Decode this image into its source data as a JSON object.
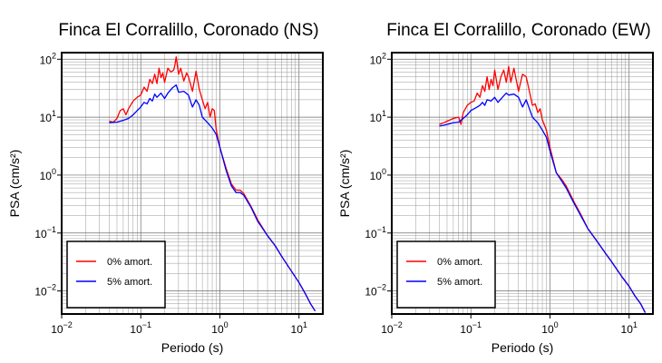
{
  "chart_data": [
    {
      "type": "line",
      "title": "Finca El Corralillo, Coronado (NS)",
      "xlabel": "Periodo (s)",
      "ylabel": "PSA (cm/s²)",
      "xscale": "log",
      "yscale": "log",
      "xlim": [
        0.01,
        20
      ],
      "ylim": [
        0.004,
        130
      ],
      "xticks": [
        0.01,
        0.1,
        1,
        10
      ],
      "xtick_labels": [
        {
          "base": "10",
          "exp": "−2"
        },
        {
          "base": "10",
          "exp": "−1"
        },
        {
          "base": "10",
          "exp": "0"
        },
        {
          "base": "10",
          "exp": "1"
        }
      ],
      "yticks": [
        0.01,
        0.1,
        1,
        10,
        100
      ],
      "ytick_labels": [
        {
          "base": "10",
          "exp": "−2"
        },
        {
          "base": "10",
          "exp": "−1"
        },
        {
          "base": "10",
          "exp": "0"
        },
        {
          "base": "10",
          "exp": "1"
        },
        {
          "base": "10",
          "exp": "2"
        }
      ],
      "grid": true,
      "legend_position": "bottom-left",
      "series": [
        {
          "name": "0% amort.",
          "color": "#ff0000",
          "points": [
            [
              0.04,
              8.5
            ],
            [
              0.045,
              8.2
            ],
            [
              0.05,
              9.5
            ],
            [
              0.055,
              13
            ],
            [
              0.06,
              14
            ],
            [
              0.065,
              11
            ],
            [
              0.07,
              14
            ],
            [
              0.08,
              19
            ],
            [
              0.09,
              22
            ],
            [
              0.1,
              24
            ],
            [
              0.11,
              33
            ],
            [
              0.12,
              28
            ],
            [
              0.13,
              45
            ],
            [
              0.14,
              38
            ],
            [
              0.15,
              55
            ],
            [
              0.16,
              38
            ],
            [
              0.17,
              70
            ],
            [
              0.18,
              48
            ],
            [
              0.19,
              58
            ],
            [
              0.2,
              40
            ],
            [
              0.22,
              70
            ],
            [
              0.24,
              60
            ],
            [
              0.26,
              65
            ],
            [
              0.27,
              80
            ],
            [
              0.28,
              110
            ],
            [
              0.3,
              55
            ],
            [
              0.32,
              70
            ],
            [
              0.35,
              42
            ],
            [
              0.38,
              58
            ],
            [
              0.4,
              50
            ],
            [
              0.45,
              28
            ],
            [
              0.5,
              62
            ],
            [
              0.55,
              30
            ],
            [
              0.6,
              20
            ],
            [
              0.65,
              14
            ],
            [
              0.7,
              18
            ],
            [
              0.75,
              10
            ],
            [
              0.8,
              14
            ],
            [
              0.85,
              13
            ],
            [
              0.9,
              6
            ],
            [
              1,
              3
            ],
            [
              1.2,
              1.3
            ],
            [
              1.4,
              0.7
            ],
            [
              1.6,
              0.55
            ],
            [
              1.8,
              0.55
            ],
            [
              2,
              0.48
            ],
            [
              2.5,
              0.28
            ],
            [
              3,
              0.17
            ],
            [
              4,
              0.09
            ],
            [
              5,
              0.06
            ],
            [
              6,
              0.04
            ],
            [
              8,
              0.022
            ],
            [
              10,
              0.014
            ],
            [
              12,
              0.009
            ],
            [
              14,
              0.006
            ],
            [
              16,
              0.0045
            ]
          ]
        },
        {
          "name": "5% amort.",
          "color": "#0000ff",
          "points": [
            [
              0.04,
              8
            ],
            [
              0.05,
              8.2
            ],
            [
              0.06,
              8.8
            ],
            [
              0.07,
              9.5
            ],
            [
              0.08,
              11
            ],
            [
              0.09,
              13
            ],
            [
              0.1,
              15
            ],
            [
              0.11,
              18
            ],
            [
              0.12,
              17
            ],
            [
              0.13,
              21
            ],
            [
              0.14,
              19
            ],
            [
              0.15,
              25
            ],
            [
              0.16,
              22
            ],
            [
              0.18,
              26
            ],
            [
              0.2,
              21
            ],
            [
              0.22,
              26
            ],
            [
              0.25,
              32
            ],
            [
              0.28,
              36
            ],
            [
              0.3,
              27
            ],
            [
              0.35,
              28
            ],
            [
              0.4,
              24
            ],
            [
              0.45,
              15
            ],
            [
              0.5,
              20
            ],
            [
              0.55,
              16
            ],
            [
              0.6,
              10
            ],
            [
              0.7,
              8
            ],
            [
              0.8,
              6.5
            ],
            [
              0.9,
              5
            ],
            [
              1,
              3
            ],
            [
              1.2,
              1.2
            ],
            [
              1.4,
              0.65
            ],
            [
              1.6,
              0.5
            ],
            [
              1.8,
              0.5
            ],
            [
              2,
              0.45
            ],
            [
              2.5,
              0.27
            ],
            [
              3,
              0.16
            ],
            [
              4,
              0.09
            ],
            [
              5,
              0.06
            ],
            [
              6,
              0.04
            ],
            [
              8,
              0.022
            ],
            [
              10,
              0.014
            ],
            [
              12,
              0.009
            ],
            [
              14,
              0.006
            ],
            [
              16,
              0.0045
            ]
          ]
        }
      ]
    },
    {
      "type": "line",
      "title": "Finca El Corralillo, Coronado (EW)",
      "xlabel": "Periodo (s)",
      "ylabel": "PSA (cm/s²)",
      "xscale": "log",
      "yscale": "log",
      "xlim": [
        0.01,
        20
      ],
      "ylim": [
        0.004,
        130
      ],
      "xticks": [
        0.01,
        0.1,
        1,
        10
      ],
      "xtick_labels": [
        {
          "base": "10",
          "exp": "−2"
        },
        {
          "base": "10",
          "exp": "−1"
        },
        {
          "base": "10",
          "exp": "0"
        },
        {
          "base": "10",
          "exp": "1"
        }
      ],
      "yticks": [
        0.01,
        0.1,
        1,
        10,
        100
      ],
      "ytick_labels": [
        {
          "base": "10",
          "exp": "−2"
        },
        {
          "base": "10",
          "exp": "−1"
        },
        {
          "base": "10",
          "exp": "0"
        },
        {
          "base": "10",
          "exp": "1"
        },
        {
          "base": "10",
          "exp": "2"
        }
      ],
      "grid": true,
      "legend_position": "bottom-left",
      "series": [
        {
          "name": "0% amort.",
          "color": "#ff0000",
          "points": [
            [
              0.04,
              7.5
            ],
            [
              0.045,
              8
            ],
            [
              0.05,
              8.5
            ],
            [
              0.06,
              9.5
            ],
            [
              0.07,
              10
            ],
            [
              0.075,
              7.5
            ],
            [
              0.08,
              12
            ],
            [
              0.09,
              16
            ],
            [
              0.1,
              18
            ],
            [
              0.11,
              19
            ],
            [
              0.12,
              26
            ],
            [
              0.13,
              22
            ],
            [
              0.14,
              35
            ],
            [
              0.15,
              28
            ],
            [
              0.16,
              50
            ],
            [
              0.17,
              30
            ],
            [
              0.18,
              45
            ],
            [
              0.19,
              35
            ],
            [
              0.2,
              65
            ],
            [
              0.22,
              30
            ],
            [
              0.24,
              50
            ],
            [
              0.26,
              65
            ],
            [
              0.28,
              40
            ],
            [
              0.3,
              75
            ],
            [
              0.32,
              40
            ],
            [
              0.35,
              70
            ],
            [
              0.4,
              28
            ],
            [
              0.45,
              55
            ],
            [
              0.5,
              50
            ],
            [
              0.55,
              28
            ],
            [
              0.6,
              16
            ],
            [
              0.65,
              17
            ],
            [
              0.7,
              12
            ],
            [
              0.75,
              14
            ],
            [
              0.8,
              9
            ],
            [
              0.9,
              6
            ],
            [
              1,
              3
            ],
            [
              1.2,
              1.1
            ],
            [
              1.4,
              0.85
            ],
            [
              1.6,
              0.65
            ],
            [
              2,
              0.35
            ],
            [
              2.5,
              0.2
            ],
            [
              3,
              0.12
            ],
            [
              4,
              0.07
            ],
            [
              5,
              0.045
            ],
            [
              6,
              0.032
            ],
            [
              8,
              0.018
            ],
            [
              10,
              0.012
            ],
            [
              12,
              0.008
            ],
            [
              14,
              0.006
            ],
            [
              16,
              0.0042
            ]
          ]
        },
        {
          "name": "5% amort.",
          "color": "#0000ff",
          "points": [
            [
              0.04,
              7
            ],
            [
              0.05,
              7.5
            ],
            [
              0.06,
              8
            ],
            [
              0.07,
              8.2
            ],
            [
              0.08,
              9.5
            ],
            [
              0.09,
              11
            ],
            [
              0.1,
              13
            ],
            [
              0.11,
              14
            ],
            [
              0.12,
              15
            ],
            [
              0.13,
              16
            ],
            [
              0.14,
              18
            ],
            [
              0.15,
              16
            ],
            [
              0.16,
              20
            ],
            [
              0.18,
              19
            ],
            [
              0.2,
              22
            ],
            [
              0.22,
              18
            ],
            [
              0.25,
              22
            ],
            [
              0.28,
              26
            ],
            [
              0.3,
              24
            ],
            [
              0.35,
              25
            ],
            [
              0.4,
              22
            ],
            [
              0.45,
              15
            ],
            [
              0.5,
              20
            ],
            [
              0.55,
              14
            ],
            [
              0.6,
              10
            ],
            [
              0.7,
              8
            ],
            [
              0.8,
              6
            ],
            [
              0.9,
              4.5
            ],
            [
              1,
              2.6
            ],
            [
              1.2,
              1.1
            ],
            [
              1.4,
              0.8
            ],
            [
              1.6,
              0.6
            ],
            [
              2,
              0.33
            ],
            [
              2.5,
              0.19
            ],
            [
              3,
              0.12
            ],
            [
              4,
              0.07
            ],
            [
              5,
              0.045
            ],
            [
              6,
              0.032
            ],
            [
              8,
              0.018
            ],
            [
              10,
              0.012
            ],
            [
              12,
              0.008
            ],
            [
              14,
              0.006
            ],
            [
              16,
              0.0042
            ]
          ]
        }
      ]
    }
  ]
}
